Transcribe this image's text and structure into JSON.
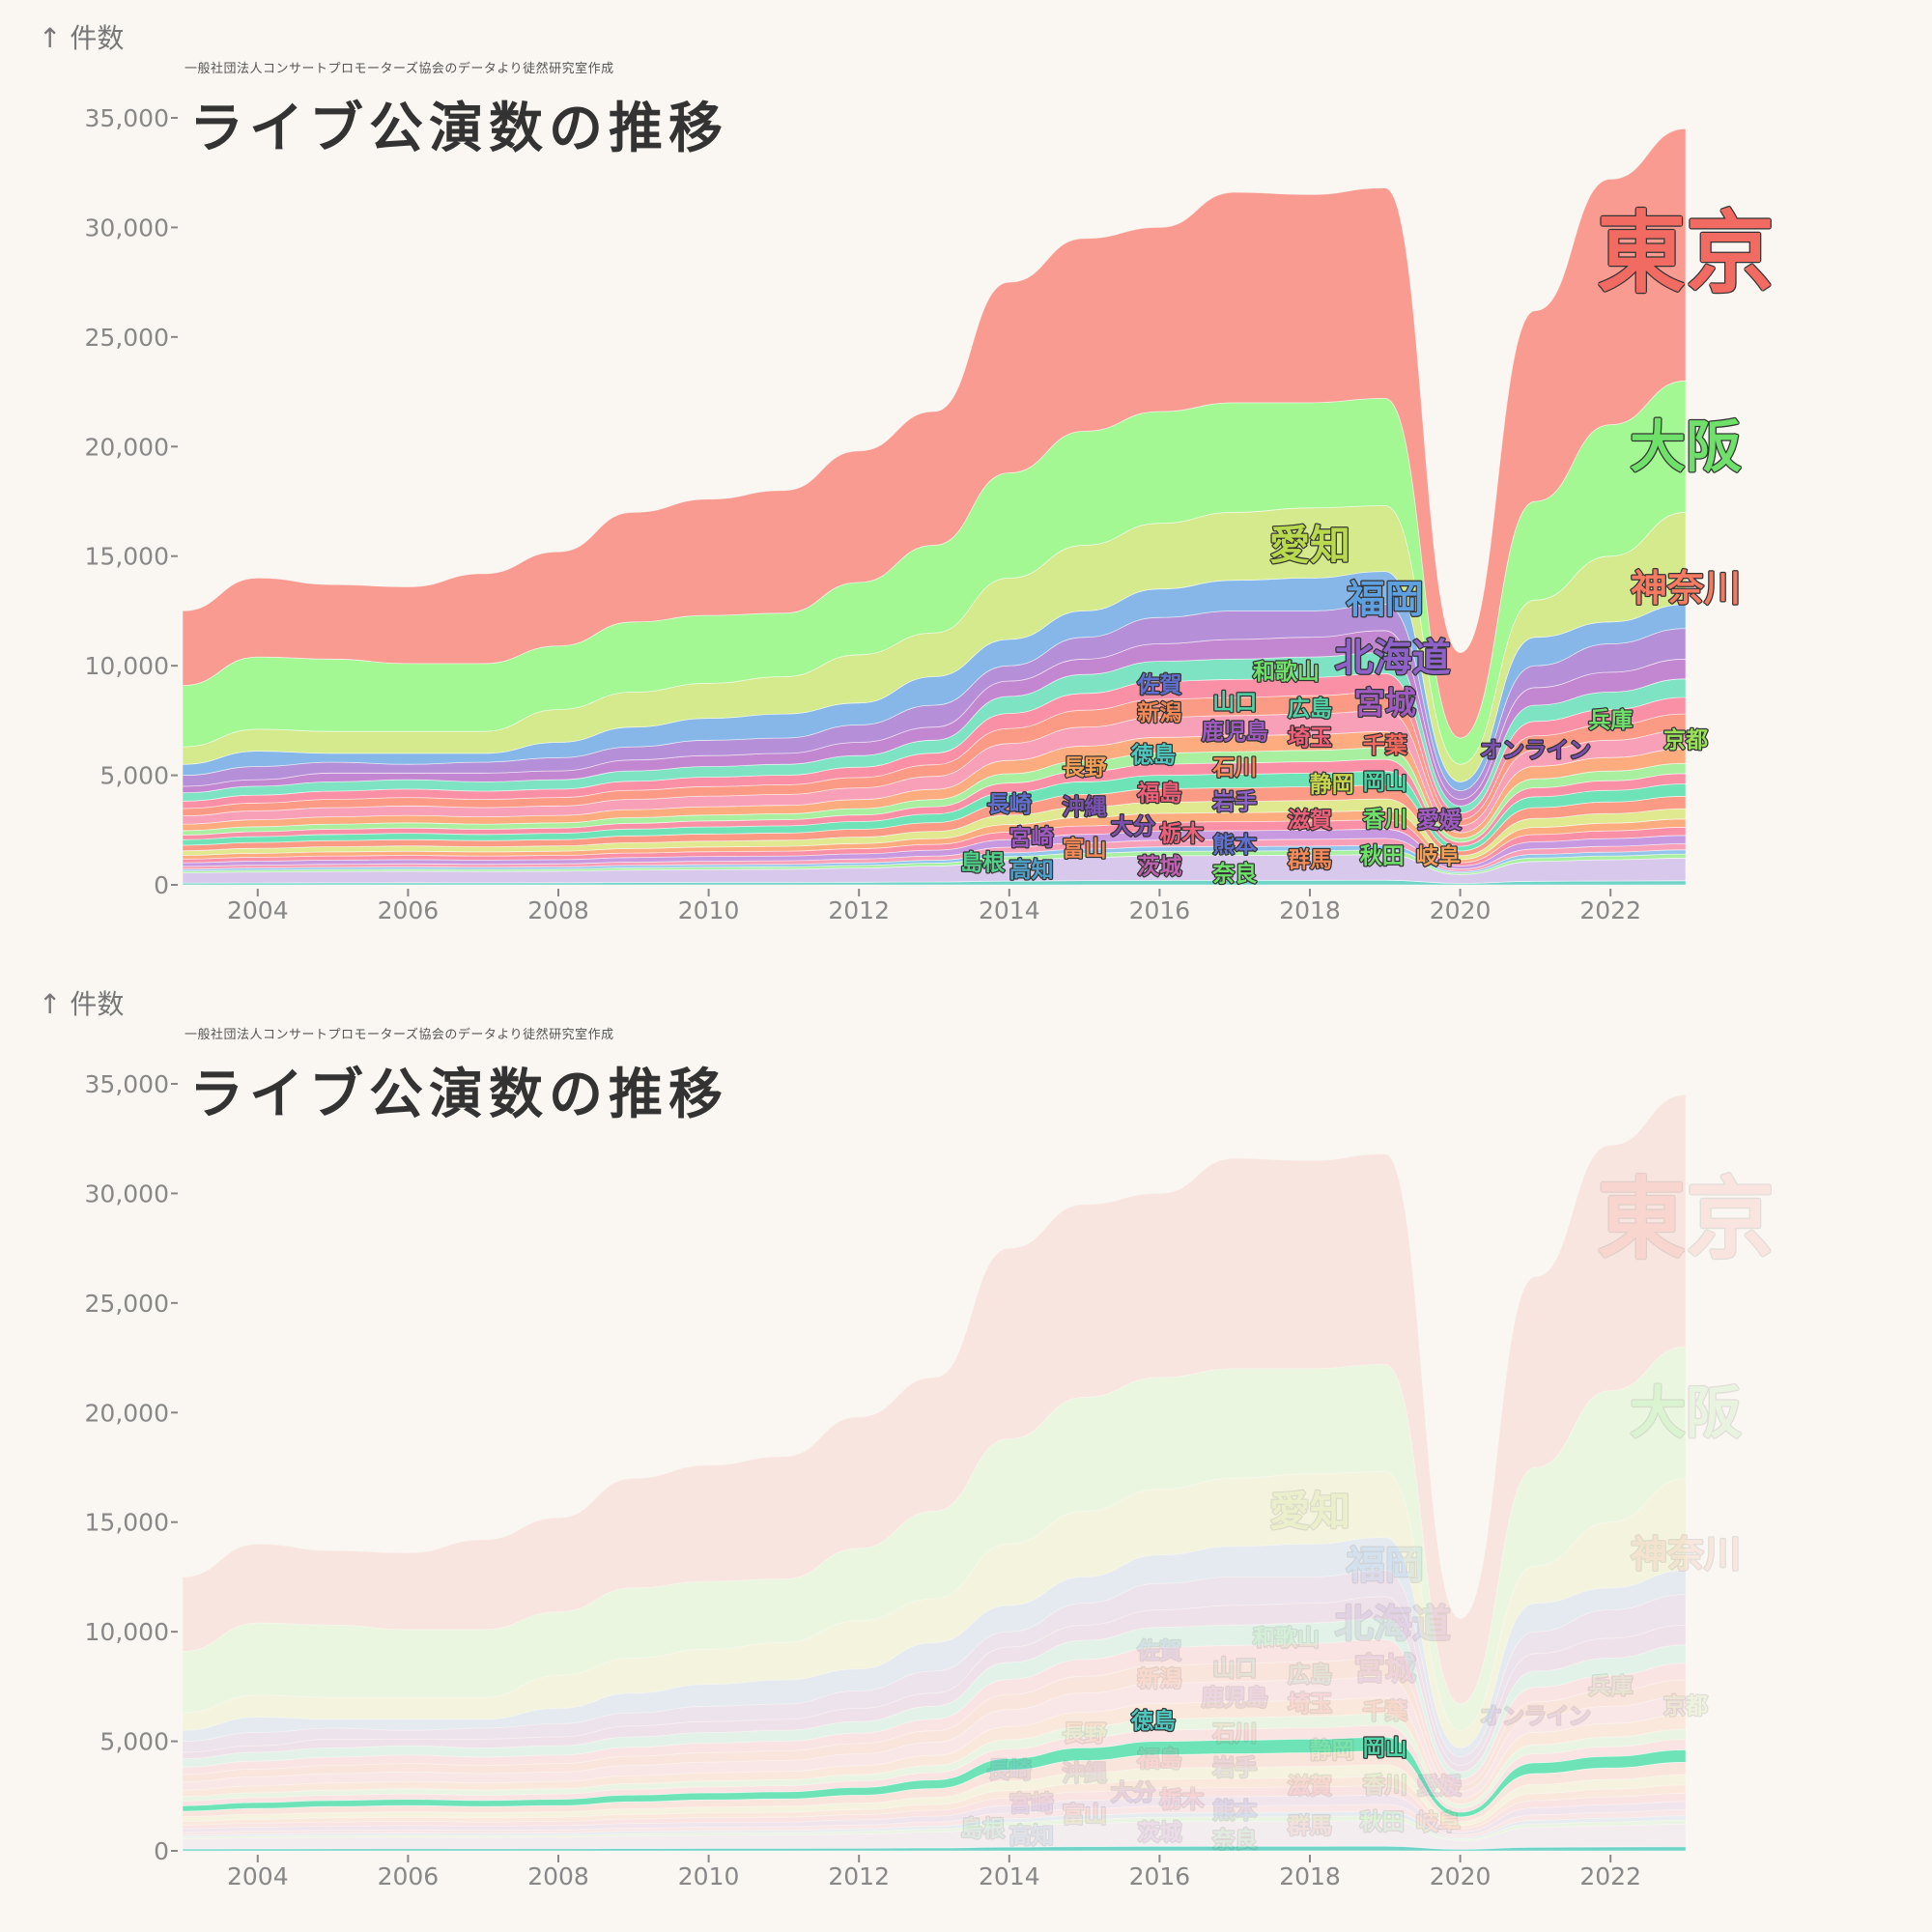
{
  "chart_data": [
    {
      "type": "area",
      "title": "ライブ公演数の推移",
      "subtitle": "一般社団法人コンサートプロモーターズ協会のデータより徒然研究室作成",
      "ylabel": "件数",
      "xlabel": "",
      "ylim": [
        0,
        35000
      ],
      "xlim": [
        2003,
        2023
      ],
      "yticks": [
        "0",
        "5,000",
        "10,000",
        "15,000",
        "20,000",
        "25,000",
        "30,000",
        "35,000"
      ],
      "ytick_values": [
        0,
        5000,
        10000,
        15000,
        20000,
        25000,
        30000,
        35000
      ],
      "xticks": [
        2004,
        2006,
        2008,
        2010,
        2012,
        2014,
        2016,
        2018,
        2020,
        2022
      ],
      "grid": false,
      "legend": "none",
      "x": [
        2003,
        2004,
        2005,
        2006,
        2007,
        2008,
        2009,
        2010,
        2011,
        2012,
        2013,
        2014,
        2015,
        2016,
        2017,
        2018,
        2019,
        2020,
        2021,
        2022,
        2023
      ],
      "series": [
        {
          "name": "徳島",
          "color": "#6fd3c8",
          "values": [
            84,
            90,
            94,
            96,
            94,
            96,
            104,
            108,
            110,
            118,
            132,
            172,
            192,
            204,
            206,
            208,
            212,
            72,
            164,
            176,
            188
          ]
        },
        {
          "color": "#d8c8ec",
          "values": [
            462,
            495,
            517,
            528,
            517,
            528,
            572,
            594,
            605,
            649,
            726,
            946,
            1056,
            1122,
            1133,
            1144,
            1166,
            396,
            902,
            968,
            1034
          ]
        },
        {
          "name": "島根",
          "color": "#a8f0a0",
          "values": [
            84,
            90,
            94,
            96,
            94,
            96,
            104,
            108,
            110,
            118,
            132,
            172,
            192,
            204,
            206,
            208,
            212,
            72,
            164,
            176,
            188
          ]
        },
        {
          "name": "佐賀",
          "color": "#92c4ec",
          "values": [
            84,
            90,
            94,
            96,
            94,
            96,
            104,
            108,
            110,
            118,
            132,
            172,
            192,
            204,
            206,
            208,
            212,
            72,
            164,
            176,
            188
          ]
        },
        {
          "name": "長崎",
          "color": "#f7a0b8",
          "values": [
            126,
            135,
            141,
            144,
            141,
            144,
            156,
            162,
            165,
            177,
            198,
            258,
            288,
            306,
            309,
            312,
            318,
            108,
            246,
            264,
            282
          ]
        },
        {
          "name": "茨城",
          "color": "#c799e0",
          "values": [
            168,
            180,
            188,
            192,
            188,
            192,
            208,
            216,
            220,
            236,
            264,
            344,
            384,
            408,
            412,
            416,
            424,
            144,
            328,
            352,
            376
          ]
        },
        {
          "name": "熊本",
          "color": "#f990a6",
          "values": [
            168,
            180,
            188,
            192,
            188,
            192,
            208,
            216,
            220,
            236,
            264,
            344,
            384,
            408,
            412,
            416,
            424,
            144,
            328,
            352,
            376
          ]
        },
        {
          "name": "福島",
          "color": "#fdac7f",
          "values": [
            168,
            180,
            188,
            192,
            188,
            192,
            208,
            216,
            220,
            236,
            264,
            344,
            384,
            408,
            412,
            416,
            424,
            144,
            328,
            352,
            376
          ]
        },
        {
          "name": "沖縄",
          "color": "#e0e890",
          "values": [
            210,
            225,
            235,
            240,
            235,
            240,
            260,
            270,
            275,
            295,
            330,
            430,
            480,
            510,
            515,
            520,
            530,
            180,
            410,
            440,
            470
          ]
        },
        {
          "name": "静岡",
          "color": "#fb9a85",
          "values": [
            252,
            270,
            282,
            288,
            282,
            288,
            312,
            324,
            330,
            354,
            396,
            516,
            576,
            612,
            618,
            624,
            636,
            216,
            492,
            528,
            564
          ]
        },
        {
          "name": "岡山",
          "color": "#6fe3b8",
          "values": [
            252,
            270,
            282,
            288,
            282,
            288,
            312,
            324,
            330,
            354,
            396,
            516,
            576,
            612,
            618,
            624,
            636,
            216,
            492,
            528,
            564
          ]
        },
        {
          "name": "石川",
          "color": "#f990a6",
          "values": [
            210,
            225,
            235,
            240,
            235,
            240,
            260,
            270,
            275,
            295,
            330,
            430,
            480,
            510,
            515,
            520,
            530,
            180,
            410,
            440,
            470
          ]
        },
        {
          "name": "新潟",
          "color": "#a8f0a0",
          "values": [
            210,
            225,
            235,
            240,
            235,
            240,
            260,
            270,
            275,
            295,
            330,
            430,
            480,
            510,
            515,
            520,
            530,
            180,
            410,
            440,
            470
          ]
        },
        {
          "name": "京都",
          "color": "#fdac7f",
          "values": [
            294,
            315,
            329,
            336,
            329,
            336,
            364,
            378,
            385,
            413,
            462,
            602,
            672,
            714,
            721,
            728,
            742,
            252,
            574,
            616,
            658
          ]
        },
        {
          "name": "兵庫",
          "color": "#f7a0b8",
          "values": [
            378,
            405,
            423,
            432,
            423,
            432,
            468,
            486,
            495,
            531,
            594,
            774,
            864,
            918,
            927,
            936,
            954,
            324,
            738,
            792,
            846
          ]
        },
        {
          "name": "千葉",
          "color": "#fb9a85",
          "values": [
            336,
            360,
            376,
            384,
            376,
            384,
            416,
            432,
            440,
            472,
            528,
            688,
            768,
            816,
            824,
            832,
            848,
            288,
            656,
            704,
            752
          ]
        },
        {
          "name": "埼玉",
          "color": "#f990a6",
          "values": [
            336,
            360,
            376,
            384,
            376,
            384,
            416,
            432,
            440,
            472,
            528,
            688,
            768,
            816,
            824,
            832,
            848,
            288,
            656,
            704,
            752
          ]
        },
        {
          "name": "広島",
          "color": "#7de3c3",
          "values": [
            378,
            405,
            423,
            432,
            423,
            432,
            468,
            486,
            495,
            531,
            594,
            774,
            864,
            918,
            927,
            936,
            954,
            324,
            738,
            792,
            846
          ]
        },
        {
          "name": "宮城",
          "color": "#c287d0",
          "values": [
            300,
            300,
            400,
            300,
            400,
            400,
            500,
            500,
            500,
            600,
            600,
            700,
            700,
            800,
            900,
            900,
            1000,
            300,
            800,
            900,
            900
          ]
        },
        {
          "name": "北海道",
          "color": "#b58fd8",
          "values": [
            500,
            600,
            500,
            400,
            500,
            600,
            600,
            700,
            700,
            800,
            1000,
            700,
            1000,
            1200,
            1300,
            1200,
            1200,
            400,
            1000,
            1300,
            1400
          ]
        },
        {
          "name": "福岡",
          "color": "#86b7e8",
          "values": [
            500,
            700,
            400,
            500,
            400,
            700,
            900,
            1000,
            1100,
            1000,
            1300,
            1200,
            1200,
            1300,
            1400,
            1500,
            1500,
            400,
            1300,
            1000,
            1100
          ]
        },
        {
          "name": "愛知",
          "color": "#d4ea8c",
          "values": [
            800,
            1000,
            1000,
            1000,
            1000,
            1500,
            1600,
            1600,
            1700,
            2200,
            2000,
            2800,
            3000,
            3000,
            3100,
            3200,
            3000,
            800,
            1700,
            3000,
            4200
          ]
        },
        {
          "name": "大阪",
          "color": "#a4f893",
          "values": [
            2800,
            3300,
            3300,
            3100,
            3100,
            2900,
            3200,
            3100,
            2900,
            3300,
            4000,
            4800,
            5200,
            5100,
            5000,
            4800,
            4900,
            1200,
            4500,
            6000,
            6000
          ]
        },
        {
          "name": "東京",
          "color": "#f99b91",
          "values": [
            3400,
            3600,
            3400,
            3500,
            4100,
            4300,
            5000,
            5300,
            5600,
            6000,
            6100,
            8700,
            8800,
            8400,
            9600,
            9500,
            9600,
            3900,
            8700,
            11200,
            11500
          ]
        }
      ],
      "labels": [
        {
          "text": "東京",
          "x": 2023,
          "y": 28870,
          "color": "#f26b62"
        },
        {
          "text": "大阪",
          "x": 2023,
          "y": 20030,
          "color": "#6fe06a"
        },
        {
          "text": "神奈川",
          "x": 2023,
          "y": 13560,
          "color": "#f47a62"
        },
        {
          "text": "愛知",
          "x": 2018,
          "y": 15530,
          "color": "#b9d94e"
        },
        {
          "text": "福岡",
          "x": 2019,
          "y": 14240,
          "color": "#5fa0e0"
        },
        {
          "text": "北海道",
          "x": 2019.1,
          "y": 12720,
          "color": "#8e62c8"
        },
        {
          "text": "宮城",
          "x": 2019,
          "y": 11250,
          "color": "#a05bc0"
        },
        {
          "text": "広島",
          "x": 2018,
          "y": 8780,
          "color": "#4fd3a6"
        },
        {
          "text": "埼玉",
          "x": 2018,
          "y": 7430,
          "color": "#f0607a"
        },
        {
          "text": "千葉",
          "x": 2019,
          "y": 7770,
          "color": "#f66a60"
        },
        {
          "text": "新潟",
          "x": 2016,
          "y": 7880,
          "color": "#f48a58"
        },
        {
          "text": "兵庫",
          "x": 2022,
          "y": 7540,
          "color": "#6fe06a"
        },
        {
          "text": "京都",
          "x": 2023,
          "y": 6640,
          "color": "#9ae05a"
        },
        {
          "text": "オンライン",
          "x": 2021,
          "y": 6190,
          "color": "#7a50b0"
        },
        {
          "text": "石川",
          "x": 2017,
          "y": 5400,
          "color": "#f48a58"
        },
        {
          "text": "長野",
          "x": 2015,
          "y": 5400,
          "color": "#f4a058"
        },
        {
          "text": "沖縄",
          "x": 2015,
          "y": 4950,
          "color": "#7a50b0"
        },
        {
          "text": "岡山",
          "x": 2019,
          "y": 5400,
          "color": "#4fd3a6"
        },
        {
          "text": "香川",
          "x": 2019,
          "y": 5060,
          "color": "#6fe06a"
        },
        {
          "text": "静岡",
          "x": 2019,
          "y": 4610,
          "color": "#c8d84e"
        },
        {
          "text": "福島",
          "x": 2016,
          "y": 4220,
          "color": "#f0607a"
        },
        {
          "text": "岩手",
          "x": 2017,
          "y": 3830,
          "color": "#8e62c8"
        },
        {
          "text": "熊本",
          "x": 2017,
          "y": 3260,
          "color": "#5f70d0"
        },
        {
          "text": "鹿児島",
          "x": 2017,
          "y": 2810,
          "color": "#a05bc0"
        },
        {
          "text": "栃木",
          "x": 2017,
          "y": 2360,
          "color": "#f0607a"
        },
        {
          "text": "富山",
          "x": 2015,
          "y": 3090,
          "color": "#f48a58"
        },
        {
          "text": "宮崎",
          "x": 2015,
          "y": 2190,
          "color": "#a05bc0"
        },
        {
          "text": "高知",
          "x": 2015,
          "y": 1410,
          "color": "#4fa0c8"
        },
        {
          "text": "茨城",
          "x": 2016,
          "y": 2980,
          "color": "#c060b0"
        },
        {
          "text": "大分",
          "x": 2016,
          "y": 2030,
          "color": "#7a50b0"
        },
        {
          "text": "長崎",
          "x": 2014,
          "y": 2360,
          "color": "#5f70d0"
        },
        {
          "text": "滋賀",
          "x": 2018,
          "y": 2980,
          "color": "#f0607a"
        },
        {
          "text": "群馬",
          "x": 2018,
          "y": 2590,
          "color": "#f48a58"
        },
        {
          "text": "秋田",
          "x": 2017.9,
          "y": 2030,
          "color": "#6fe06a"
        },
        {
          "text": "和歌山",
          "x": 2018.2,
          "y": 2030,
          "color": "#6fe06a"
        },
        {
          "text": "愛媛",
          "x": 2019,
          "y": 2980,
          "color": "#a05bc0"
        },
        {
          "text": "岐阜",
          "x": 2019,
          "y": 2030,
          "color": "#f4a058"
        },
        {
          "text": "山口",
          "x": 2017,
          "y": 1580,
          "color": "#4fd3a6"
        },
        {
          "text": "奈良",
          "x": 2017,
          "y": 1240,
          "color": "#6fe06a"
        },
        {
          "text": "徳島",
          "x": 2017,
          "y": 340,
          "color": "#4fc8c0"
        },
        {
          "text": "佐賀",
          "x": 2016,
          "y": 340,
          "color": "#5f70d0"
        },
        {
          "text": "島根",
          "x": 2014,
          "y": 340,
          "color": "#4fd38a"
        }
      ]
    },
    {
      "type": "area",
      "title": "ライブ公演数の推移",
      "subtitle": "一般社団法人コンサートプロモーターズ協会のデータより徒然研究室作成",
      "ylabel": "件数",
      "highlighted": [
        "岡山",
        "徳島"
      ],
      "note": "same data as above, all other series faded"
    }
  ],
  "panels": [
    {
      "ylabel": "件数",
      "subtitle": "一般社団法人コンサートプロモーターズ協会のデータより徒然研究室作成",
      "title": "ライブ公演数の推移"
    },
    {
      "ylabel": "件数",
      "subtitle": "一般社団法人コンサートプロモーターズ協会のデータより徒然研究室作成",
      "title": "ライブ公演数の推移"
    }
  ],
  "icons": {
    "axis_arrow": "arrow-up-icon"
  }
}
